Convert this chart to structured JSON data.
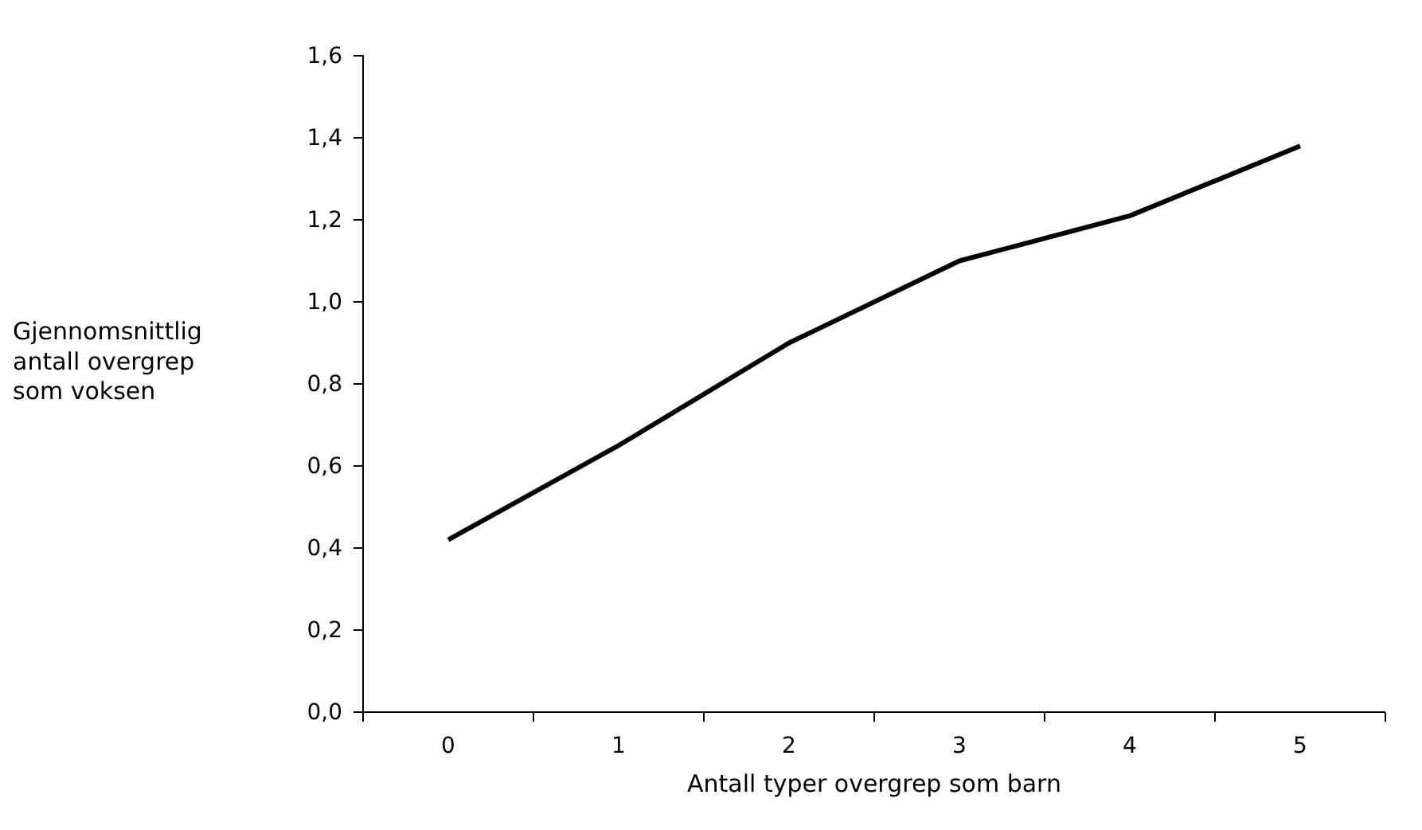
{
  "chart_data": {
    "type": "line",
    "xlabel": "Antall typer overgrep som barn",
    "ylabel": "Gjennomsnittlig antall overgrep som voksen",
    "categories": [
      "0",
      "1",
      "2",
      "3",
      "4",
      "5"
    ],
    "series": [
      {
        "color": "#000000",
        "values": [
          0.42,
          0.65,
          0.9,
          1.1,
          1.21,
          1.38
        ]
      }
    ],
    "ylim": [
      0,
      1.6
    ],
    "yticks": [
      {
        "value": 0,
        "label": "0,0"
      },
      {
        "value": 0.2,
        "label": "0,2"
      },
      {
        "value": 0.4,
        "label": "0,4"
      },
      {
        "value": 0.6,
        "label": "0,6"
      },
      {
        "value": 0.8,
        "label": "0,8"
      },
      {
        "value": 1,
        "label": "1,0"
      },
      {
        "value": 1.2,
        "label": "1,2"
      },
      {
        "value": 1.4,
        "label": "1,4"
      },
      {
        "value": 1.6,
        "label": "1,6"
      }
    ],
    "grid": false,
    "marker": "none",
    "line_style": "solid"
  }
}
